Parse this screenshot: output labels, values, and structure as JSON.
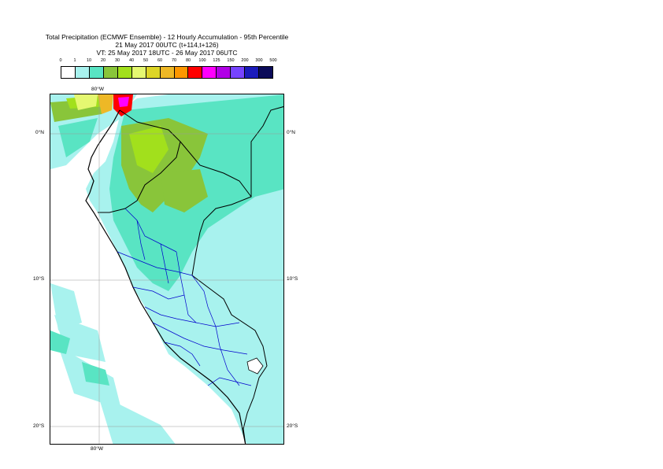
{
  "title": {
    "line1": "Total Precipitation (ECMWF Ensemble) - 12 Hourly Accumulation - 95th Percentile",
    "line2": "21 May 2017 00UTC (t+114,t+126)",
    "line3": "VT: 25 May 2017 18UTC - 26 May 2017 06UTC"
  },
  "legend": {
    "ticks": [
      "0",
      "1",
      "10",
      "20",
      "30",
      "40",
      "50",
      "60",
      "70",
      "80",
      "100",
      "125",
      "150",
      "200",
      "300",
      "500"
    ],
    "colors": [
      "#ffffff",
      "#a8f2ee",
      "#59e4c3",
      "#89c53a",
      "#a2e01c",
      "#e5f871",
      "#ddd526",
      "#eeb826",
      "#fd9700",
      "#ff0000",
      "#ff00ff",
      "#b100e6",
      "#7744ff",
      "#1b1bbb",
      "#0b0b59"
    ]
  },
  "axes": {
    "lon_top": "80°W",
    "lon_bottom": "80°W",
    "lat_0_left": "0°N",
    "lat_0_right": "0°N",
    "lat_10_left": "10°S",
    "lat_10_right": "10°S",
    "lat_20_left": "20°S",
    "lat_20_right": "20°S"
  },
  "map": {
    "region": "Peru",
    "land_light": "#a8f2ee",
    "land_mid": "#59e4c3",
    "land_green": "#89c53a",
    "land_yellowgreen": "#a2e01c",
    "heavy_red": "#ff0000",
    "heavy_magenta": "#ff00ff",
    "border_color": "#000000",
    "admin_color": "#0000cc"
  }
}
